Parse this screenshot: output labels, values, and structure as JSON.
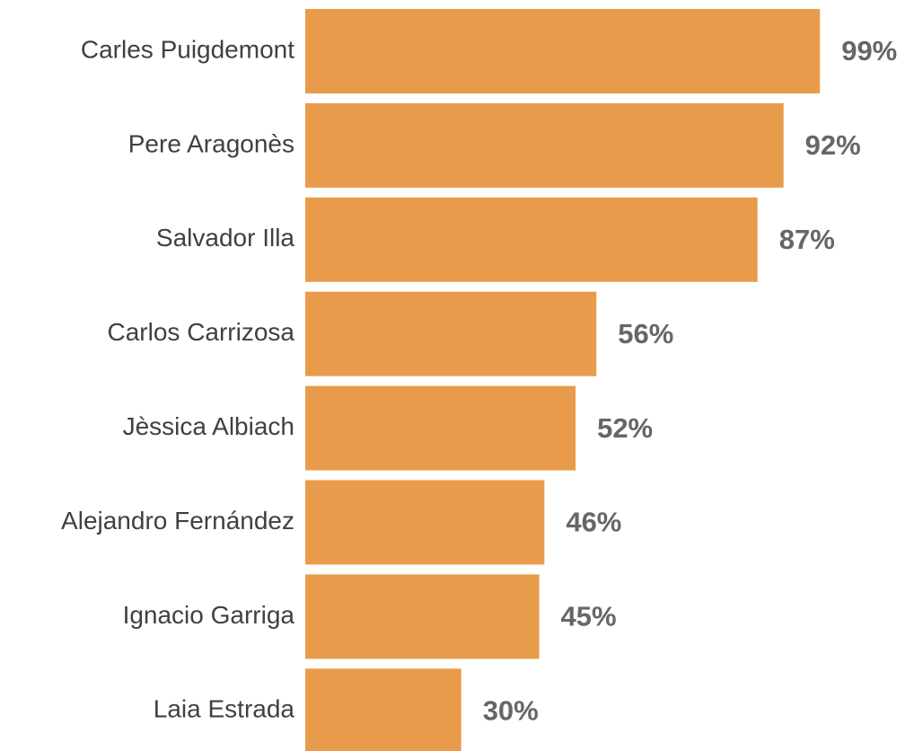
{
  "chart_data": {
    "type": "bar",
    "orientation": "horizontal",
    "categories": [
      "Carles Puigdemont",
      "Pere Aragonès",
      "Salvador Illa",
      "Carlos Carrizosa",
      "Jèssica Albiach",
      "Alejandro Fernández",
      "Ignacio Garriga",
      "Laia Estrada"
    ],
    "values": [
      99,
      92,
      87,
      56,
      52,
      46,
      45,
      30
    ],
    "value_labels": [
      "99%",
      "92%",
      "87%",
      "56%",
      "52%",
      "46%",
      "45%",
      "30%"
    ],
    "color": "#e89c4b",
    "xlim": [
      0,
      100
    ]
  }
}
